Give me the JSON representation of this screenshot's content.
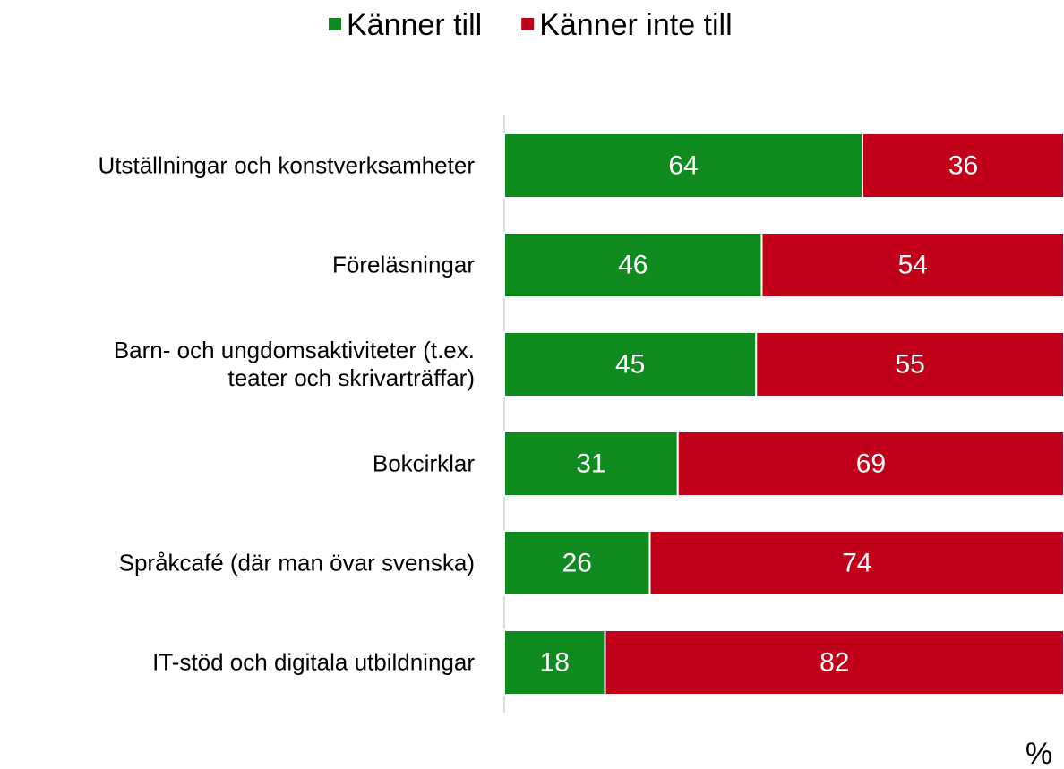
{
  "chart_data": {
    "type": "stacked_barh",
    "categories": [
      "Utställningar och konstverksamheter",
      "Föreläsningar",
      "Barn- och ungdomsaktiviteter (t.ex.\nteater och skrivarträffar)",
      "Bokcirklar",
      "Språkcafé (där man övar svenska)",
      "IT-stöd och digitala utbildningar"
    ],
    "series": [
      {
        "name": "Känner till",
        "color": "#0f8a1f",
        "values": [
          64,
          46,
          45,
          31,
          26,
          18
        ]
      },
      {
        "name": "Känner inte till",
        "color": "#c1001a",
        "values": [
          36,
          54,
          55,
          69,
          74,
          82
        ]
      }
    ],
    "xlim": [
      0,
      100
    ],
    "xlabel": "%",
    "legend": "top"
  }
}
